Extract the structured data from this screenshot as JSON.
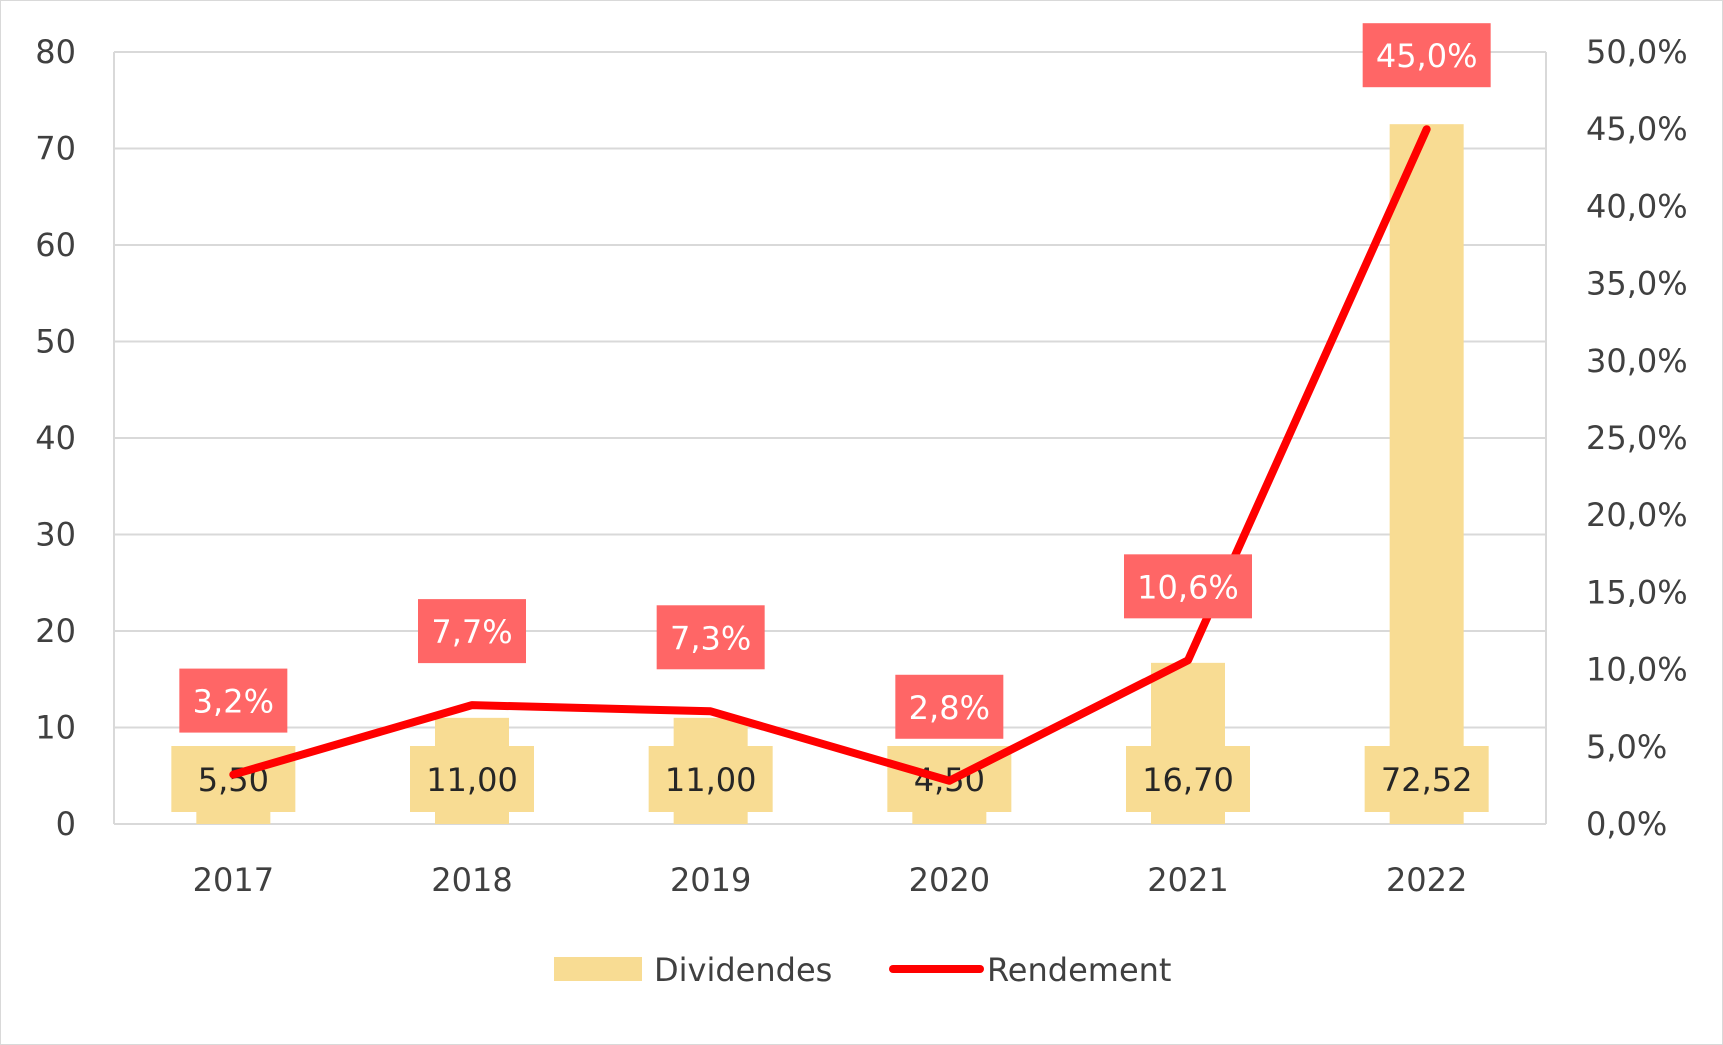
{
  "chart_data": {
    "type": "bar",
    "categories": [
      "2017",
      "2018",
      "2019",
      "2020",
      "2021",
      "2022"
    ],
    "series": [
      {
        "name": "Dividendes",
        "type": "bar",
        "axis": "left",
        "color": "#f8dc93",
        "values": [
          5.5,
          11.0,
          11.0,
          4.5,
          16.7,
          72.52
        ],
        "labels": [
          "5,50",
          "11,00",
          "11,00",
          "4,50",
          "16,70",
          "72,52"
        ]
      },
      {
        "name": "Rendement",
        "type": "line",
        "axis": "right",
        "color": "#ff0000",
        "label_bg": "#ff6666",
        "values": [
          3.2,
          7.7,
          7.3,
          2.8,
          10.6,
          45.0
        ],
        "labels": [
          "3,2%",
          "7,7%",
          "7,3%",
          "2,8%",
          "10,6%",
          "45,0%"
        ]
      }
    ],
    "y_left": {
      "min": 0,
      "max": 80,
      "step": 10,
      "ticks": [
        "0",
        "10",
        "20",
        "30",
        "40",
        "50",
        "60",
        "70",
        "80"
      ]
    },
    "y_right": {
      "min": 0,
      "max": 50,
      "step": 5,
      "ticks": [
        "0,0%",
        "5,0%",
        "10,0%",
        "15,0%",
        "20,0%",
        "25,0%",
        "30,0%",
        "35,0%",
        "40,0%",
        "45,0%",
        "50,0%"
      ]
    },
    "grid": true,
    "legend_position": "bottom",
    "title": "",
    "xlabel": "",
    "ylabel": ""
  }
}
